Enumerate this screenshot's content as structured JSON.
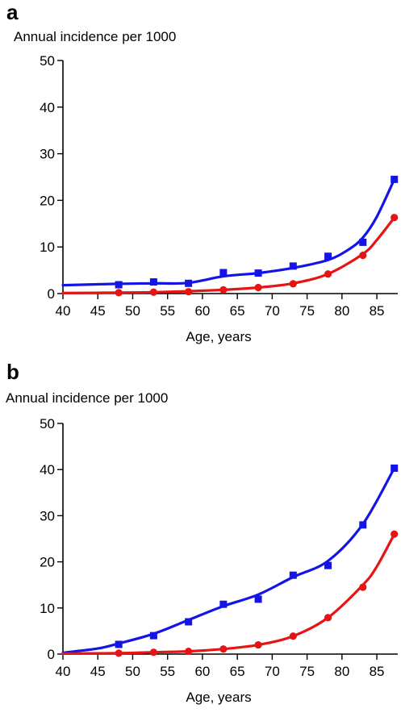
{
  "chart_data": [
    {
      "panel_label": "a",
      "type": "line",
      "ylabel": "Annual incidence per 1000",
      "xlabel": "Age, years",
      "xlim": [
        40,
        88
      ],
      "ylim": [
        0,
        50
      ],
      "xticks": [
        40,
        45,
        50,
        55,
        60,
        65,
        70,
        75,
        80,
        85
      ],
      "yticks": [
        0,
        10,
        20,
        30,
        40,
        50
      ],
      "grid": false,
      "series": [
        {
          "color": "#1414e6",
          "marker": "square",
          "points": [
            [
              48,
              1.9
            ],
            [
              53,
              2.5
            ],
            [
              58,
              2.2
            ],
            [
              63,
              4.5
            ],
            [
              68,
              4.4
            ],
            [
              73,
              5.9
            ],
            [
              78,
              8.0
            ],
            [
              83,
              11.0
            ],
            [
              87.5,
              24.5
            ]
          ],
          "curve": [
            [
              40,
              1.8
            ],
            [
              48,
              2.1
            ],
            [
              53,
              2.2
            ],
            [
              58,
              2.3
            ],
            [
              63,
              3.7
            ],
            [
              68,
              4.4
            ],
            [
              73,
              5.5
            ],
            [
              78,
              7.2
            ],
            [
              81,
              9.5
            ],
            [
              83,
              12.0
            ],
            [
              85,
              16.5
            ],
            [
              87.5,
              24.5
            ]
          ]
        },
        {
          "color": "#e61414",
          "marker": "circle",
          "points": [
            [
              48,
              0.2
            ],
            [
              53,
              0.3
            ],
            [
              58,
              0.4
            ],
            [
              63,
              0.8
            ],
            [
              68,
              1.3
            ],
            [
              73,
              2.1
            ],
            [
              78,
              4.2
            ],
            [
              83,
              8.2
            ],
            [
              87.5,
              16.3
            ]
          ],
          "curve": [
            [
              40,
              0.1
            ],
            [
              48,
              0.2
            ],
            [
              53,
              0.3
            ],
            [
              58,
              0.5
            ],
            [
              63,
              0.8
            ],
            [
              68,
              1.3
            ],
            [
              73,
              2.2
            ],
            [
              78,
              4.2
            ],
            [
              83,
              8.5
            ],
            [
              85,
              11.5
            ],
            [
              87.5,
              16.3
            ]
          ]
        }
      ]
    },
    {
      "panel_label": "b",
      "type": "line",
      "ylabel": "Annual incidence per 1000",
      "xlabel": "Age, years",
      "xlim": [
        40,
        88
      ],
      "ylim": [
        0,
        50
      ],
      "xticks": [
        40,
        45,
        50,
        55,
        60,
        65,
        70,
        75,
        80,
        85
      ],
      "yticks": [
        0,
        10,
        20,
        30,
        40,
        50
      ],
      "grid": false,
      "series": [
        {
          "color": "#1414e6",
          "marker": "square",
          "points": [
            [
              48,
              2.1
            ],
            [
              53,
              4.0
            ],
            [
              58,
              7.0
            ],
            [
              63,
              10.8
            ],
            [
              68,
              11.9
            ],
            [
              73,
              17.1
            ],
            [
              78,
              19.2
            ],
            [
              83,
              28.0
            ],
            [
              87.5,
              40.3
            ]
          ],
          "curve": [
            [
              40,
              0.3
            ],
            [
              45,
              1.2
            ],
            [
              48,
              2.3
            ],
            [
              53,
              4.4
            ],
            [
              58,
              7.4
            ],
            [
              63,
              10.4
            ],
            [
              68,
              12.9
            ],
            [
              73,
              16.7
            ],
            [
              78,
              20.2
            ],
            [
              83,
              28.2
            ],
            [
              87.5,
              40.3
            ]
          ]
        },
        {
          "color": "#e61414",
          "marker": "circle",
          "points": [
            [
              48,
              0.2
            ],
            [
              53,
              0.4
            ],
            [
              58,
              0.6
            ],
            [
              63,
              1.1
            ],
            [
              68,
              2.0
            ],
            [
              73,
              3.9
            ],
            [
              78,
              7.9
            ],
            [
              83,
              14.5
            ],
            [
              87.5,
              26.0
            ]
          ],
          "curve": [
            [
              40,
              0.1
            ],
            [
              48,
              0.2
            ],
            [
              53,
              0.4
            ],
            [
              58,
              0.6
            ],
            [
              63,
              1.1
            ],
            [
              68,
              2.0
            ],
            [
              73,
              3.9
            ],
            [
              78,
              7.9
            ],
            [
              83,
              15.0
            ],
            [
              85,
              19.0
            ],
            [
              87.5,
              26.0
            ]
          ]
        }
      ]
    }
  ]
}
